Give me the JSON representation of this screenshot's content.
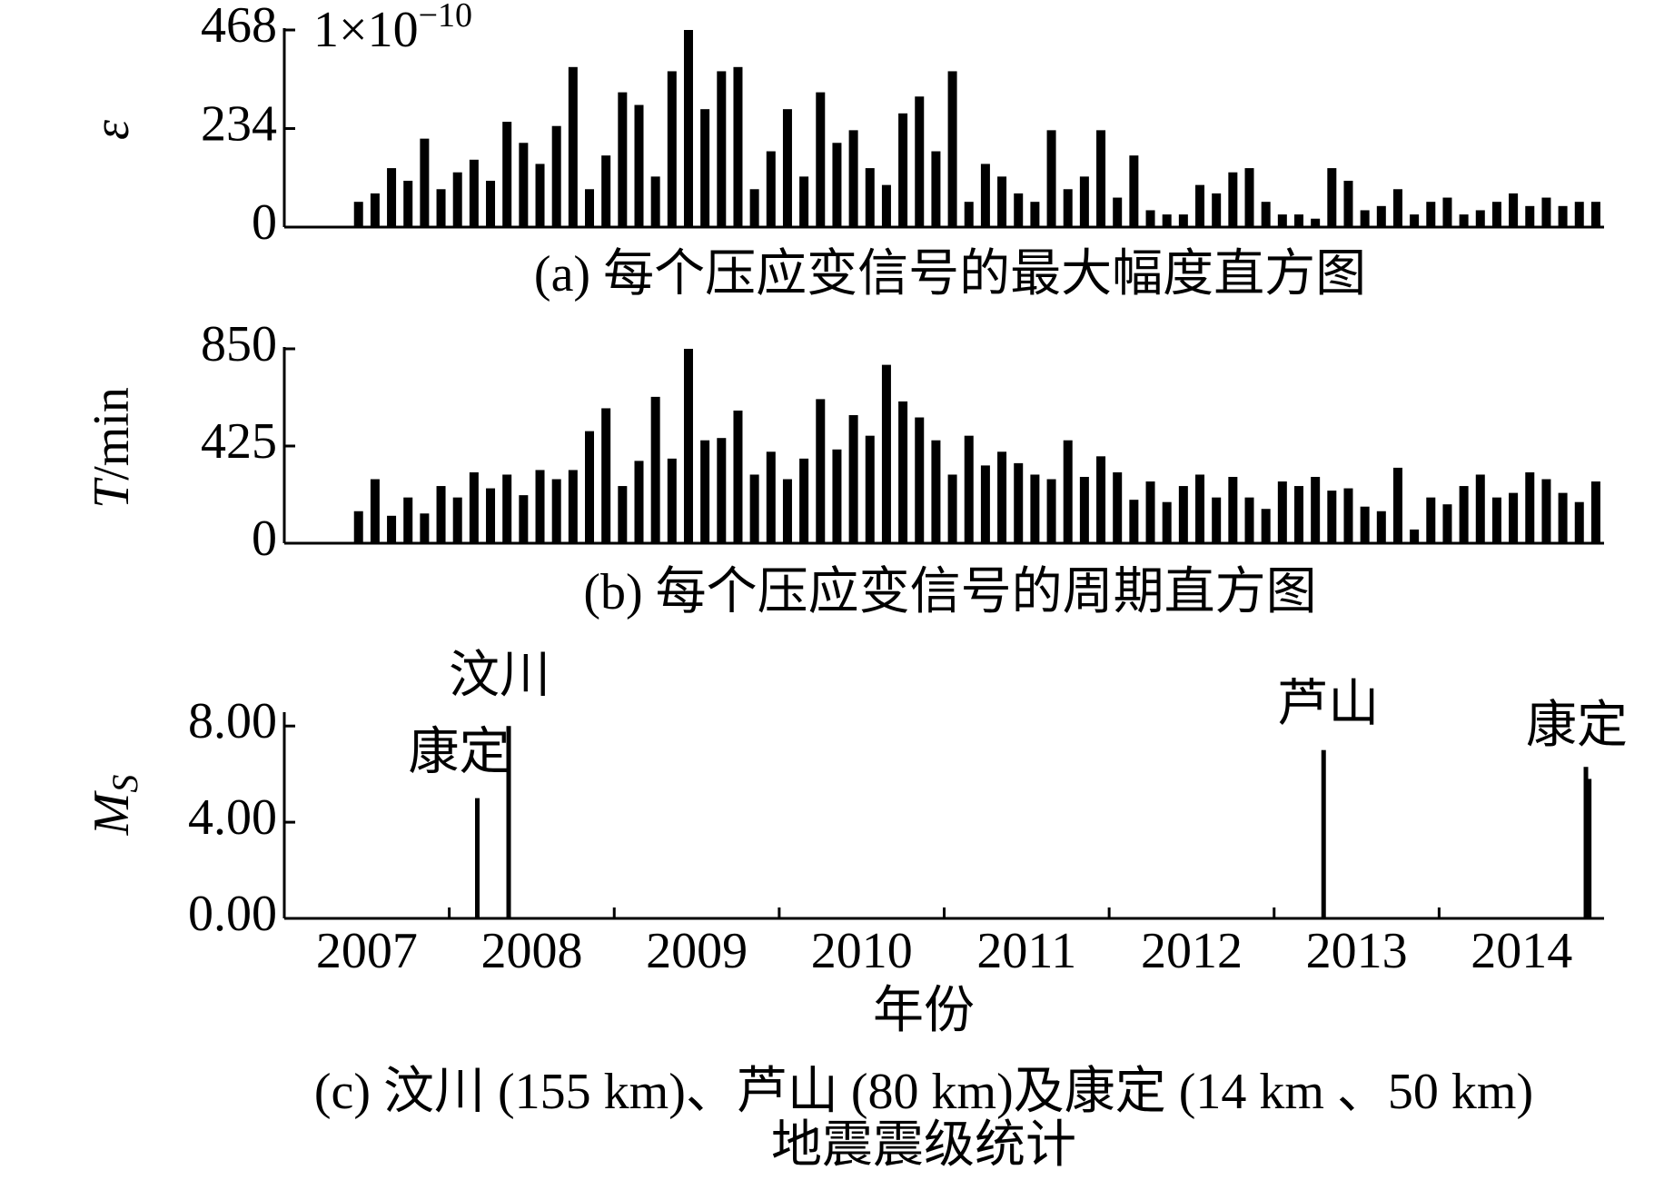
{
  "chart_data": [
    {
      "type": "bar",
      "caption": "(a) 每个压应变信号的最大幅度直方图",
      "ylabel": "ε",
      "y_exponent_label": "1×10",
      "y_exponent_power": "−10",
      "color": "#000000",
      "xlim": [
        2007,
        2015
      ],
      "ylim": [
        0,
        468
      ],
      "yticks": [
        0,
        234,
        468
      ],
      "x": [
        2007.45,
        2007.55,
        2007.65,
        2007.75,
        2007.85,
        2007.95,
        2008.05,
        2008.15,
        2008.25,
        2008.35,
        2008.45,
        2008.55,
        2008.65,
        2008.75,
        2008.85,
        2008.95,
        2009.05,
        2009.15,
        2009.25,
        2009.35,
        2009.45,
        2009.55,
        2009.65,
        2009.75,
        2009.85,
        2009.95,
        2010.05,
        2010.15,
        2010.25,
        2010.35,
        2010.45,
        2010.55,
        2010.65,
        2010.75,
        2010.85,
        2010.95,
        2011.05,
        2011.15,
        2011.25,
        2011.35,
        2011.45,
        2011.55,
        2011.65,
        2011.75,
        2011.85,
        2011.95,
        2012.05,
        2012.15,
        2012.25,
        2012.35,
        2012.45,
        2012.55,
        2012.65,
        2012.75,
        2012.85,
        2012.95,
        2013.05,
        2013.15,
        2013.25,
        2013.35,
        2013.45,
        2013.55,
        2013.65,
        2013.75,
        2013.85,
        2013.95,
        2014.05,
        2014.15,
        2014.25,
        2014.35,
        2014.45,
        2014.55,
        2014.65,
        2014.75,
        2014.85,
        2014.95
      ],
      "values": [
        60,
        80,
        140,
        110,
        210,
        90,
        130,
        160,
        110,
        250,
        200,
        150,
        240,
        380,
        90,
        170,
        320,
        290,
        120,
        370,
        468,
        280,
        370,
        380,
        90,
        180,
        280,
        120,
        320,
        200,
        230,
        140,
        100,
        270,
        310,
        180,
        370,
        60,
        150,
        120,
        80,
        60,
        230,
        90,
        120,
        230,
        70,
        170,
        40,
        30,
        30,
        100,
        80,
        130,
        140,
        60,
        30,
        30,
        20,
        140,
        110,
        40,
        50,
        90,
        30,
        60,
        70,
        30,
        40,
        60,
        80,
        50,
        70,
        50,
        60,
        60
      ]
    },
    {
      "type": "bar",
      "caption": "(b) 每个压应变信号的周期直方图",
      "ylabel": {
        "var": "T",
        "unit": "/min"
      },
      "color": "#000000",
      "xlim": [
        2007,
        2015
      ],
      "ylim": [
        0,
        850
      ],
      "yticks": [
        0,
        425,
        850
      ],
      "x": [
        2007.45,
        2007.55,
        2007.65,
        2007.75,
        2007.85,
        2007.95,
        2008.05,
        2008.15,
        2008.25,
        2008.35,
        2008.45,
        2008.55,
        2008.65,
        2008.75,
        2008.85,
        2008.95,
        2009.05,
        2009.15,
        2009.25,
        2009.35,
        2009.45,
        2009.55,
        2009.65,
        2009.75,
        2009.85,
        2009.95,
        2010.05,
        2010.15,
        2010.25,
        2010.35,
        2010.45,
        2010.55,
        2010.65,
        2010.75,
        2010.85,
        2010.95,
        2011.05,
        2011.15,
        2011.25,
        2011.35,
        2011.45,
        2011.55,
        2011.65,
        2011.75,
        2011.85,
        2011.95,
        2012.05,
        2012.15,
        2012.25,
        2012.35,
        2012.45,
        2012.55,
        2012.65,
        2012.75,
        2012.85,
        2012.95,
        2013.05,
        2013.15,
        2013.25,
        2013.35,
        2013.45,
        2013.55,
        2013.65,
        2013.75,
        2013.85,
        2013.95,
        2014.05,
        2014.15,
        2014.25,
        2014.35,
        2014.45,
        2014.55,
        2014.65,
        2014.75,
        2014.85,
        2014.95
      ],
      "values": [
        140,
        280,
        120,
        200,
        130,
        250,
        200,
        310,
        240,
        300,
        210,
        320,
        280,
        320,
        490,
        590,
        250,
        360,
        640,
        370,
        850,
        450,
        460,
        580,
        300,
        400,
        280,
        370,
        630,
        410,
        560,
        470,
        780,
        620,
        550,
        450,
        300,
        470,
        340,
        400,
        350,
        300,
        280,
        450,
        290,
        380,
        310,
        190,
        270,
        180,
        250,
        300,
        200,
        290,
        200,
        150,
        270,
        250,
        290,
        230,
        240,
        160,
        140,
        330,
        60,
        200,
        170,
        250,
        300,
        200,
        220,
        310,
        280,
        220,
        180,
        270
      ]
    },
    {
      "type": "bar",
      "caption": "(c) 汶川 (155 km)、芦山 (80 km)及康定 (14 km 、50 km)",
      "caption_line2": "地震震级统计",
      "ylabel": {
        "var": "M",
        "sub": "S"
      },
      "xlabel": "年份",
      "color": "#000000",
      "xlim": [
        2007,
        2015
      ],
      "xtick_marks": [
        2008,
        2009,
        2010,
        2011,
        2012,
        2013,
        2014
      ],
      "xtick_labels": [
        {
          "value": 2007.5,
          "label": "2007"
        },
        {
          "value": 2008.5,
          "label": "2008"
        },
        {
          "value": 2009.5,
          "label": "2009"
        },
        {
          "value": 2010.5,
          "label": "2010"
        },
        {
          "value": 2011.5,
          "label": "2011"
        },
        {
          "value": 2012.5,
          "label": "2012"
        },
        {
          "value": 2013.5,
          "label": "2013"
        },
        {
          "value": 2014.5,
          "label": "2014"
        }
      ],
      "ylim": [
        0,
        8.5
      ],
      "yticks": [
        {
          "value": 0,
          "label": "0.00"
        },
        {
          "value": 4,
          "label": "4.00"
        },
        {
          "value": 8,
          "label": "8.00"
        }
      ],
      "x": [
        2008.17,
        2008.36,
        2013.3,
        2014.89,
        2014.91
      ],
      "values": [
        5.0,
        8.0,
        7.0,
        6.3,
        5.8
      ],
      "labels": [
        "康定",
        "汶川",
        "芦山",
        "康定",
        null
      ]
    }
  ]
}
